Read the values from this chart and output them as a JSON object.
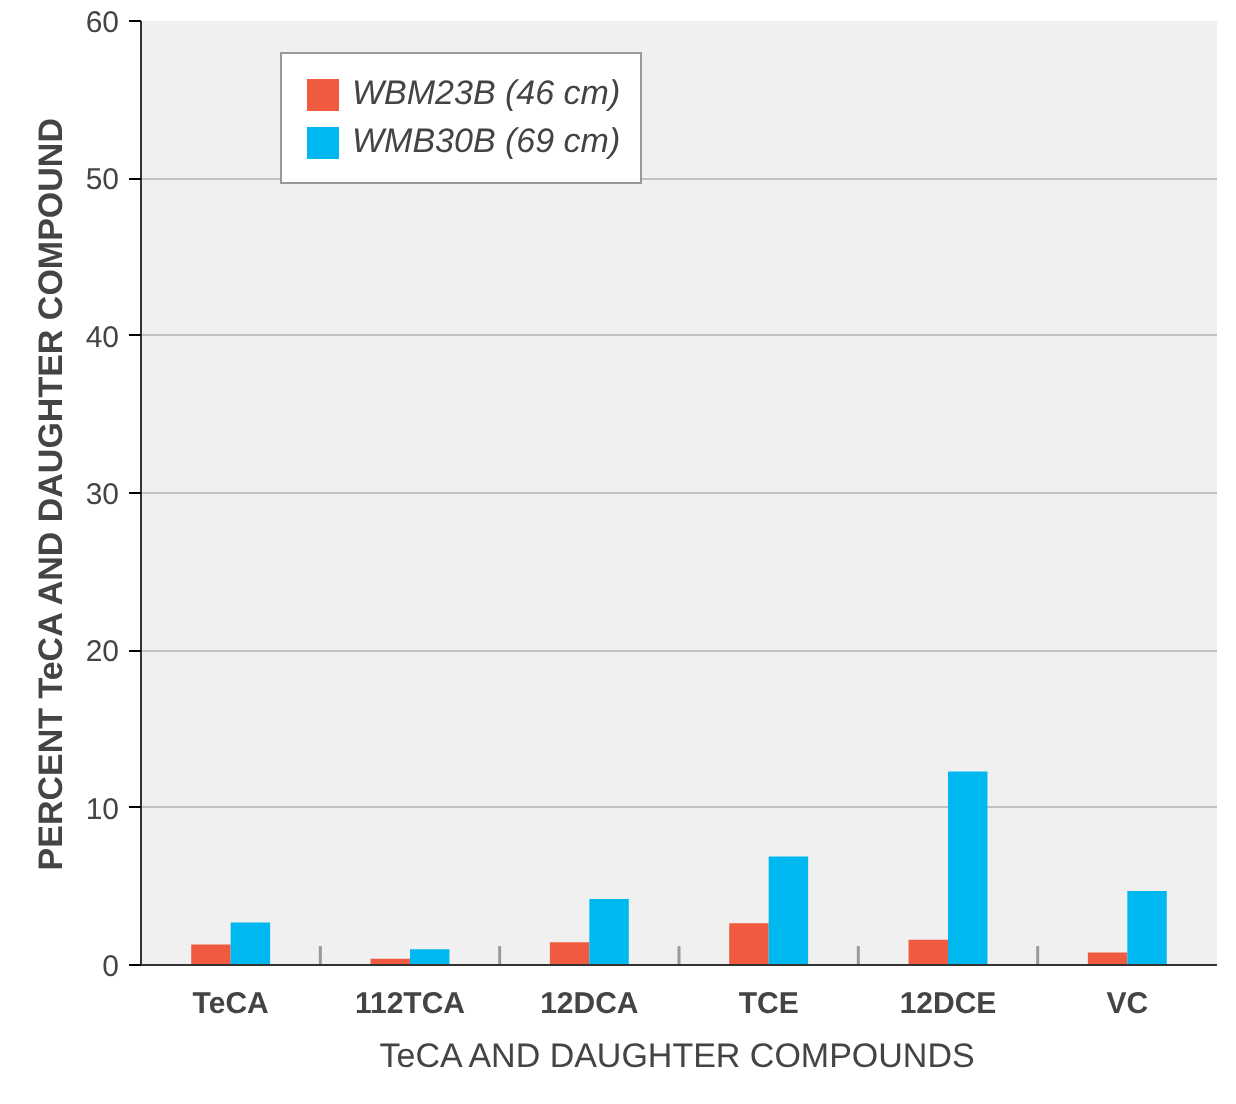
{
  "chart_data": {
    "type": "bar",
    "xlabel": "TeCA AND DAUGHTER COMPOUNDS",
    "ylabel": "PERCENT TeCA AND DAUGHTER COMPOUND",
    "categories": [
      "TeCA",
      "112TCA",
      "12DCA",
      "TCE",
      "12DCE",
      "VC"
    ],
    "series": [
      {
        "name": "WBM23B (46 cm)",
        "color": "#f05a40",
        "values": [
          1.3,
          0.4,
          1.45,
          2.65,
          1.6,
          0.8
        ]
      },
      {
        "name": "WMB30B (69 cm)",
        "color": "#00b8f0",
        "values": [
          2.7,
          1.0,
          4.2,
          6.9,
          12.3,
          4.7
        ]
      }
    ],
    "ylim": [
      0,
      60
    ],
    "yticks": [
      0,
      10,
      20,
      30,
      40,
      50,
      60
    ],
    "grid": "y",
    "legend": "top left"
  }
}
